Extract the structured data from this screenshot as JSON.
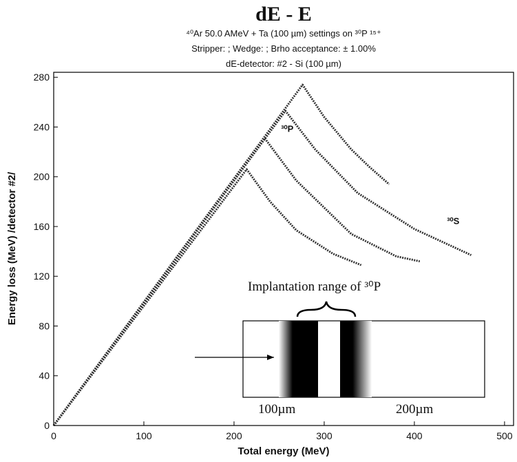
{
  "chart_data": {
    "type": "line",
    "title": "dE - E",
    "subtitle": [
      "⁴⁰Ar 50.0 AMeV + Ta (100 µm)    settings on ³⁰P ¹⁵⁺",
      "Stripper:  ; Wedge:    ; Brho acceptance: ± 1.00%",
      "dE-detector: #2 - Si (100 µm)"
    ],
    "xlabel": "Total energy (MeV)",
    "ylabel": "Energy loss (MeV) /detector #2/",
    "xlim": [
      0,
      510
    ],
    "ylim": [
      0,
      284
    ],
    "xticks": [
      0,
      100,
      200,
      300,
      400,
      500
    ],
    "yticks": [
      0,
      40,
      80,
      120,
      160,
      200,
      240,
      280
    ],
    "series": [
      {
        "color": "#333333",
        "x": [
          0,
          276,
          300,
          330,
          350,
          372
        ],
        "values": [
          0,
          274,
          248,
          222,
          208,
          194
        ]
      },
      {
        "color": "#333333",
        "x": [
          0,
          257,
          290,
          337,
          400,
          463
        ],
        "values": [
          0,
          253,
          222,
          187,
          158,
          137
        ]
      },
      {
        "color": "#333333",
        "x": [
          0,
          234,
          269,
          330,
          380,
          406
        ],
        "values": [
          0,
          231,
          197,
          154,
          136,
          132
        ]
      },
      {
        "color": "#333333",
        "x": [
          0,
          214,
          240,
          269,
          310,
          341
        ],
        "values": [
          0,
          206,
          180,
          157,
          138,
          129
        ]
      }
    ],
    "annotations": [
      {
        "text": "³⁰S",
        "x": 436,
        "y": 162
      },
      {
        "text": "³⁰P",
        "x": 252,
        "y": 236
      }
    ],
    "inset": {
      "title": "Implantation range of ³⁰P",
      "left_label": "100µm",
      "right_label": "200µm"
    }
  }
}
